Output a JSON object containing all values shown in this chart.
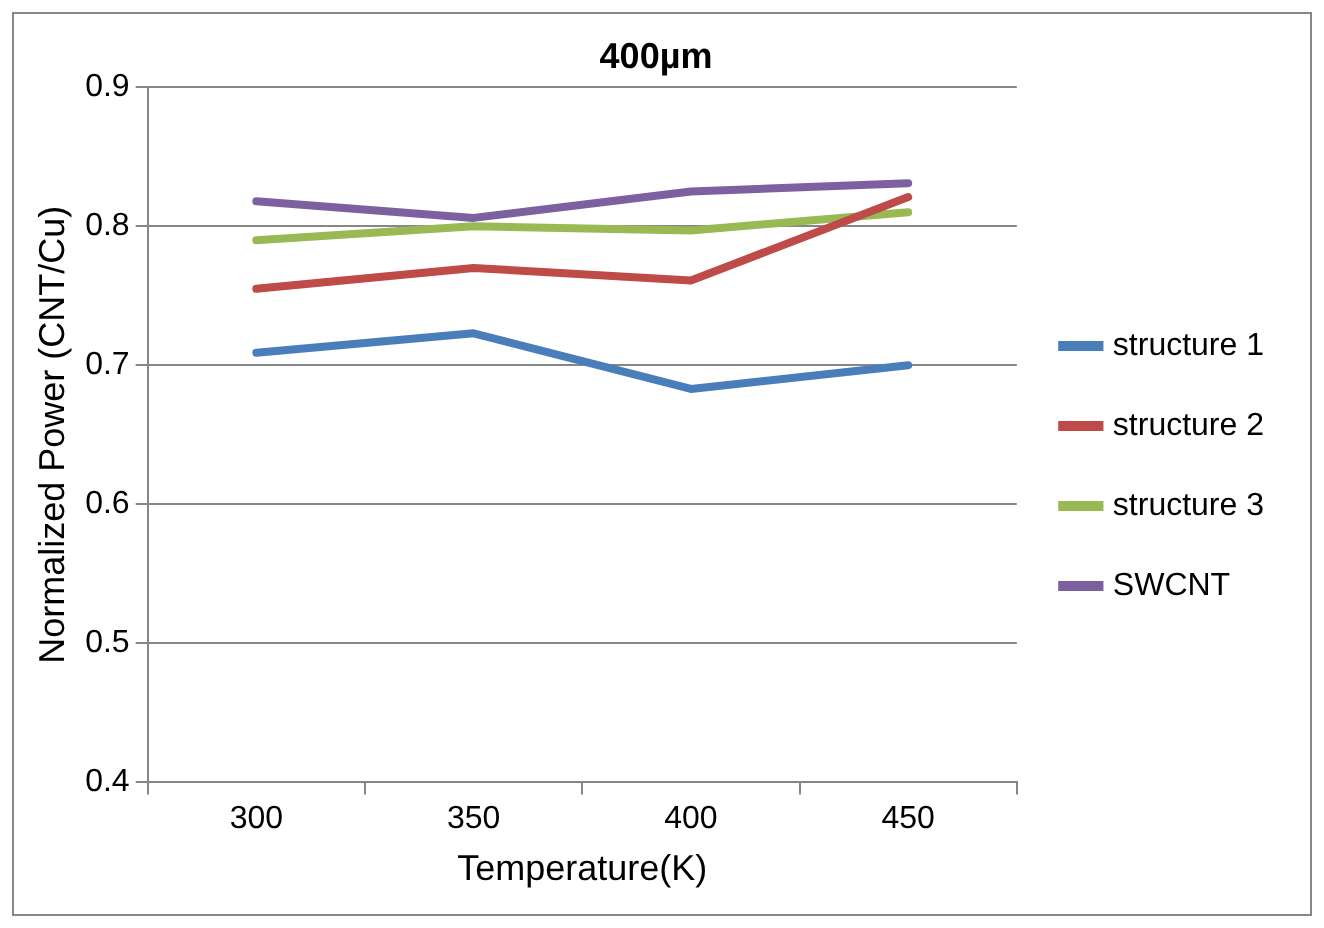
{
  "chart_data": {
    "type": "line",
    "title": "400µm",
    "xlabel": "Temperature(K)",
    "ylabel": "Normalized Power (CNT/Cu)",
    "categories": [
      "300",
      "350",
      "400",
      "450"
    ],
    "series": [
      {
        "name": "structure 1",
        "color": "#4a7ebb",
        "values": [
          0.709,
          0.723,
          0.683,
          0.7
        ]
      },
      {
        "name": "structure 2",
        "color": "#be4b48",
        "values": [
          0.755,
          0.77,
          0.761,
          0.821
        ]
      },
      {
        "name": "structure 3",
        "color": "#98b954",
        "values": [
          0.79,
          0.8,
          0.797,
          0.81
        ]
      },
      {
        "name": "SWCNT",
        "color": "#7d60a0",
        "values": [
          0.818,
          0.806,
          0.825,
          0.831
        ]
      }
    ],
    "ylim": [
      0.4,
      0.9
    ],
    "yticks": [
      0.4,
      0.5,
      0.6,
      0.7,
      0.8,
      0.9
    ],
    "grid": "y",
    "legend": "right",
    "marker": "none",
    "line_style": "solid"
  }
}
